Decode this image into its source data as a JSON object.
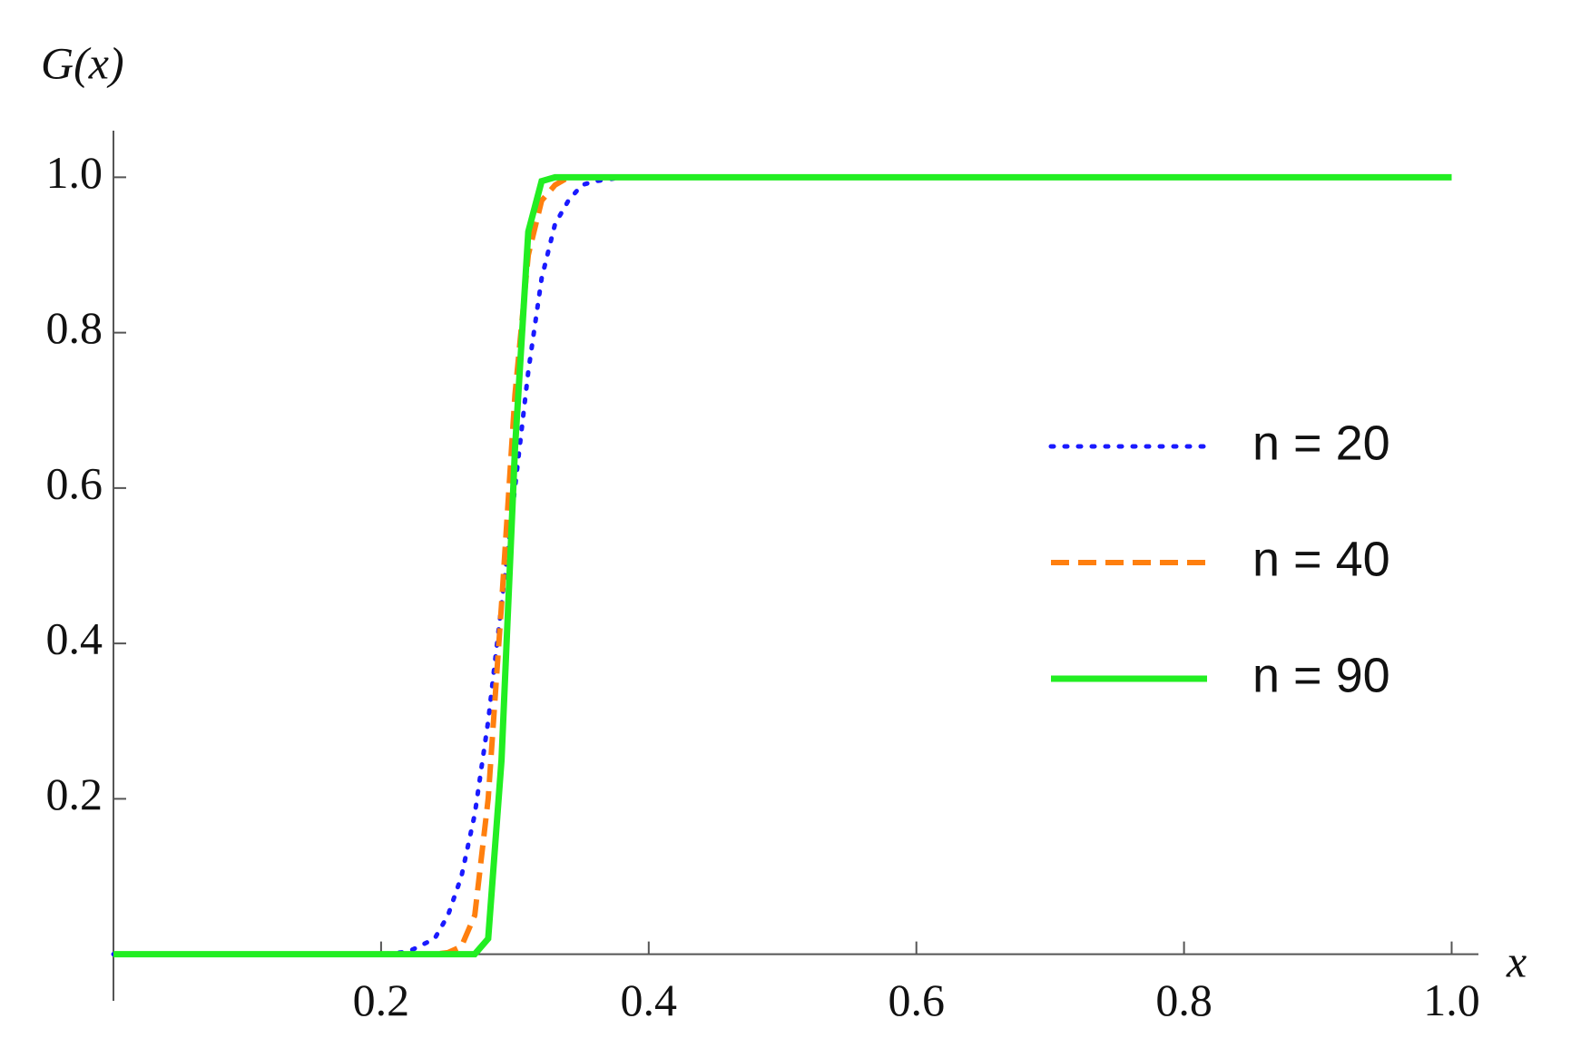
{
  "chart_data": {
    "type": "line",
    "y_label": "G(x)",
    "x_label": "x",
    "x": [
      0,
      0.05,
      0.1,
      0.15,
      0.2,
      0.22,
      0.24,
      0.25,
      0.26,
      0.27,
      0.28,
      0.29,
      0.3,
      0.31,
      0.32,
      0.33,
      0.34,
      0.35,
      0.36,
      0.38,
      0.4,
      0.5,
      0.6,
      0.7,
      0.8,
      0.9,
      1.0
    ],
    "series": [
      {
        "name": "n = 20",
        "color": "#1a1aff",
        "dash": "dotted",
        "values": [
          0,
          0,
          0,
          0,
          0,
          0.003,
          0.02,
          0.05,
          0.1,
          0.18,
          0.3,
          0.45,
          0.6,
          0.75,
          0.87,
          0.94,
          0.97,
          0.99,
          0.995,
          1,
          1,
          1,
          1,
          1,
          1,
          1,
          1
        ]
      },
      {
        "name": "n = 40",
        "color": "#ff7f0e",
        "dash": "dashed",
        "values": [
          0,
          0,
          0,
          0,
          0,
          0,
          0,
          0.002,
          0.01,
          0.05,
          0.2,
          0.45,
          0.72,
          0.9,
          0.97,
          0.99,
          1,
          1,
          1,
          1,
          1,
          1,
          1,
          1,
          1,
          1,
          1
        ]
      },
      {
        "name": "n = 90",
        "color": "#22ee22",
        "dash": "solid",
        "values": [
          0,
          0,
          0,
          0,
          0,
          0,
          0,
          0,
          0,
          0,
          0.02,
          0.25,
          0.65,
          0.93,
          0.995,
          1,
          1,
          1,
          1,
          1,
          1,
          1,
          1,
          1,
          1,
          1,
          1
        ]
      }
    ],
    "xlim": [
      0,
      1.02
    ],
    "ylim": [
      -0.06,
      1.06
    ],
    "xticks": [
      0.2,
      0.4,
      0.6,
      0.8,
      {
        "value": 1,
        "label": "1.0"
      }
    ],
    "yticks": [
      0.2,
      0.4,
      0.6,
      0.8,
      {
        "value": 1,
        "label": "1.0"
      }
    ],
    "legend": "right"
  }
}
